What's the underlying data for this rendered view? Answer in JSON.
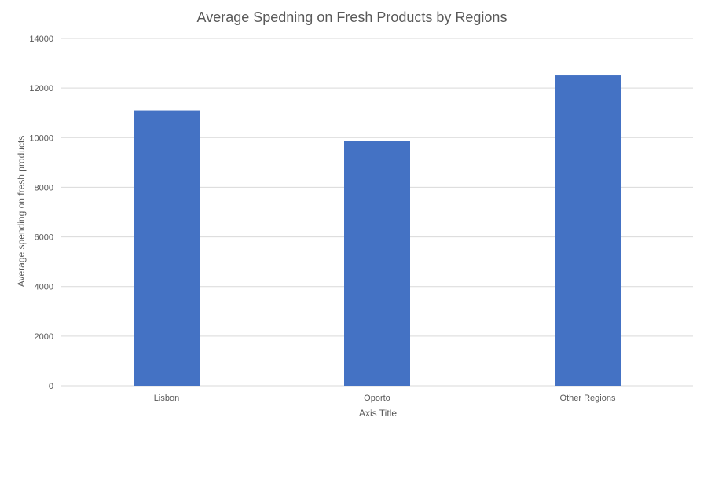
{
  "chart_data": {
    "type": "bar",
    "title": "Average Spedning on Fresh Products by Regions",
    "xlabel": "Axis Title",
    "ylabel": "Average spending on fresh products",
    "categories": [
      "Lisbon",
      "Oporto",
      "Other Regions"
    ],
    "values": [
      11100,
      9880,
      12510
    ],
    "ylim": [
      0,
      14000
    ],
    "yticks": [
      "0",
      "2000",
      "4000",
      "6000",
      "8000",
      "10000",
      "12000",
      "14000"
    ],
    "grid": true,
    "legend": "none",
    "colors": {
      "bar": "#4472C4",
      "grid": "#d9d9d9",
      "text": "#595959"
    }
  }
}
